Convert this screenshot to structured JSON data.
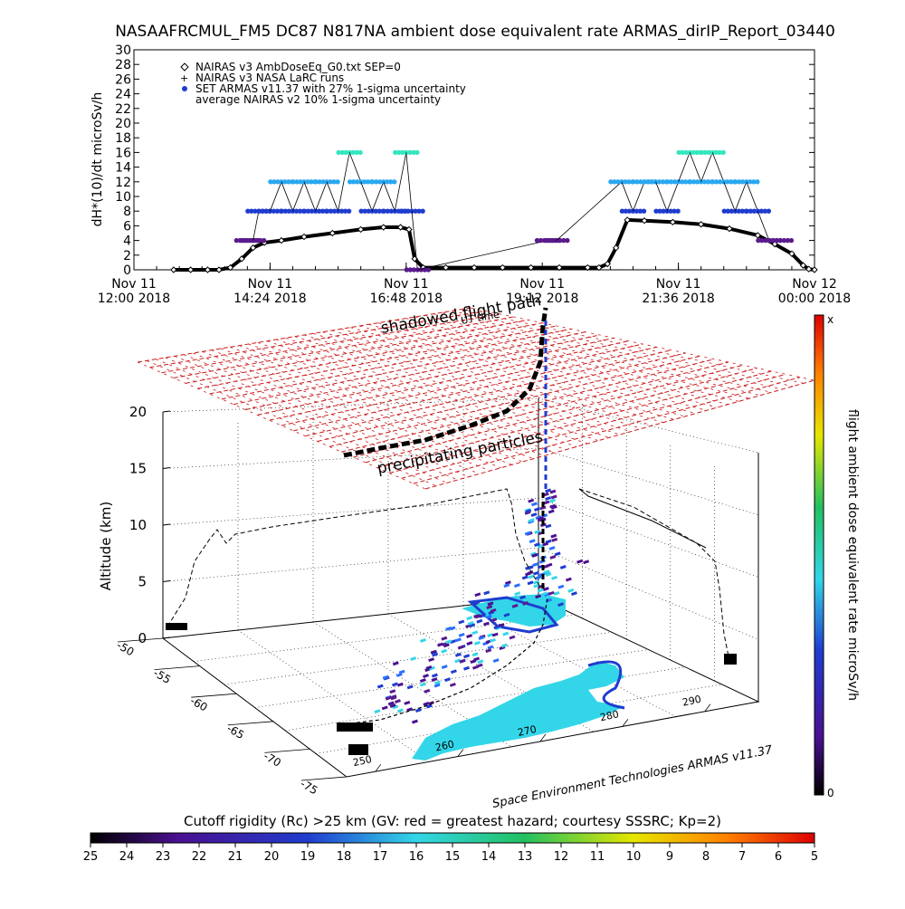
{
  "title": "NASAAFRCMUL_FM5 DC87 N817NA ambient dose equivalent rate ARMAS_dirIP_Report_03440",
  "chart_data": [
    {
      "type": "scatter",
      "ylabel": "dH*(10)/dt microSv/h",
      "xlabel": "",
      "ylim": [
        0,
        30
      ],
      "yticks": [
        "0",
        "2",
        "4",
        "6",
        "8",
        "10",
        "12",
        "14",
        "16",
        "18",
        "20",
        "22",
        "24",
        "26",
        "28",
        "30"
      ],
      "xticks": [
        {
          "top": "Nov 11",
          "bottom": "12:00 2018",
          "hours": 0
        },
        {
          "top": "Nov 11",
          "bottom": "14:24 2018",
          "hours": 2.4
        },
        {
          "top": "Nov 11",
          "bottom": "16:48 2018",
          "hours": 4.8
        },
        {
          "top": "Nov 11",
          "bottom": "19:12 2018",
          "hours": 7.2
        },
        {
          "top": "Nov 11",
          "bottom": "21:36 2018",
          "hours": 9.6
        },
        {
          "top": "Nov 12",
          "bottom": "00:00 2018",
          "hours": 12.0
        }
      ],
      "legend": [
        {
          "symbol": "◇",
          "label": "NAIRAS v3 AmbDoseEq_G0.txt SEP=0"
        },
        {
          "symbol": "+",
          "label": "NAIRAS v3 NASA LaRC runs"
        },
        {
          "symbol": "●",
          "label": "SET ARMAS v11.37 with 27% 1-sigma uncertainty"
        },
        {
          "symbol": "",
          "label": "average NAIRAS v2 10% 1-sigma uncertainty"
        }
      ],
      "legend_position": "top-left",
      "series": [
        {
          "name": "NAIRAS v3 AmbDoseEq_G0.txt SEP=0",
          "x": [
            0.7,
            1.0,
            1.3,
            1.5,
            1.7,
            1.9,
            2.1,
            2.3,
            2.6,
            3.0,
            3.5,
            4.0,
            4.4,
            4.7,
            4.85,
            4.95,
            5.1,
            5.5,
            6.0,
            6.5,
            7.0,
            7.5,
            8.0,
            8.2,
            8.35,
            8.5,
            8.7,
            9.0,
            9.5,
            10.0,
            10.5,
            11.0,
            11.3,
            11.6,
            11.8,
            11.9,
            12.0
          ],
          "y": [
            0,
            0,
            0,
            0,
            0.3,
            1.5,
            3,
            3.7,
            4,
            4.5,
            5,
            5.5,
            5.8,
            5.8,
            5.5,
            1.5,
            0.3,
            0.3,
            0.3,
            0.3,
            0.3,
            0.3,
            0.3,
            0.3,
            0.8,
            3,
            6.8,
            6.7,
            6.5,
            6.2,
            5.6,
            4.7,
            3.5,
            2.2,
            0.6,
            0.1,
            0
          ]
        },
        {
          "name": "SET ARMAS v11.37 with 27% 1-sigma uncertainty",
          "x": [
            2.0,
            2.1,
            2.2,
            2.4,
            2.6,
            2.8,
            3.0,
            3.2,
            3.4,
            3.6,
            3.8,
            4.0,
            4.2,
            4.4,
            4.6,
            4.8,
            4.9,
            5.0,
            7.3,
            7.45,
            8.6,
            8.8,
            9.0,
            9.2,
            9.4,
            9.6,
            9.8,
            10.0,
            10.2,
            10.4,
            10.6,
            10.8,
            11.0,
            11.2,
            11.4
          ],
          "y": [
            4,
            4,
            8,
            8,
            12,
            8,
            12,
            8,
            12,
            8,
            16,
            12,
            8,
            12,
            8,
            16,
            8,
            0,
            4,
            4,
            12,
            8,
            12,
            12,
            8,
            12,
            16,
            12,
            16,
            12,
            8,
            12,
            8,
            4,
            4
          ]
        }
      ]
    },
    {
      "type": "scatter",
      "zlabel": "Altitude (km)",
      "zlim": [
        0,
        20
      ],
      "zticks": [
        "0",
        "5",
        "10",
        "15",
        "20"
      ],
      "lat_ticks": [
        "-50",
        "-55",
        "-60",
        "-65",
        "-70",
        "-75"
      ],
      "lon_ticks": [
        "250",
        "260",
        "270",
        "280",
        "290"
      ],
      "annotations": [
        "shadowed flight path",
        "precipitating particles",
        "UT time",
        "x",
        "Space Environment Technologies ARMAS v11.37"
      ],
      "side_colorbar": {
        "label": "flight ambient dose equivalent rate microSv/h",
        "top": "x",
        "bottom": "0"
      }
    }
  ],
  "cutoff_colorbar": {
    "label": "Cutoff rigidity (Rc) >25 km (GV: red = greatest hazard; courtesy SSSRC; Kp=2)",
    "ticks": [
      "25",
      "24",
      "23",
      "22",
      "21",
      "20",
      "19",
      "18",
      "17",
      "16",
      "15",
      "14",
      "13",
      "12",
      "11",
      "10",
      "9",
      "8",
      "7",
      "6",
      "5"
    ]
  },
  "colors": {
    "data_black": "#000000",
    "low_purple": "#5a1a8c",
    "mid_blue": "#1f3ccf",
    "bright_blue": "#2a6fff",
    "cyan": "#33d6e8",
    "teal_high": "#33e6c0",
    "grid_red": "#cc1a1a"
  }
}
